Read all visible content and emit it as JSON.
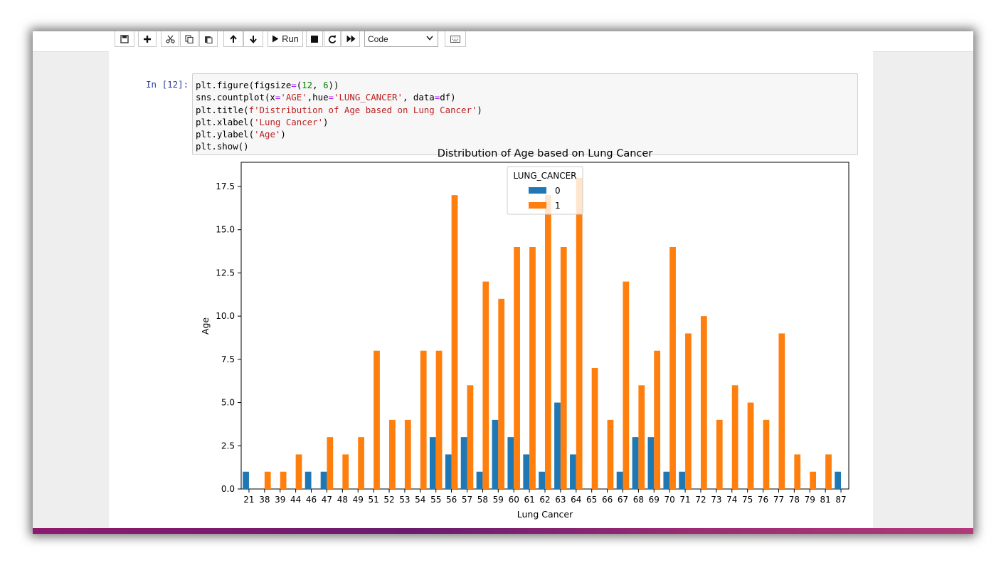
{
  "toolbar": {
    "buttons": [
      {
        "name": "save-button",
        "icon": "floppy-disk-icon"
      },
      {
        "name": "insert-cell-button",
        "icon": "plus-icon"
      },
      {
        "name": "cut-button",
        "icon": "scissors-icon"
      },
      {
        "name": "copy-button",
        "icon": "copy-icon"
      },
      {
        "name": "paste-button",
        "icon": "paste-icon"
      },
      {
        "name": "move-up-button",
        "icon": "arrow-up-icon"
      },
      {
        "name": "move-down-button",
        "icon": "arrow-down-icon"
      },
      {
        "name": "run-button",
        "icon": "play-icon"
      },
      {
        "name": "interrupt-button",
        "icon": "stop-icon"
      },
      {
        "name": "restart-button",
        "icon": "refresh-icon"
      },
      {
        "name": "restart-run-all-button",
        "icon": "fast-forward-icon"
      },
      {
        "name": "command-palette-button",
        "icon": "keyboard-icon"
      }
    ],
    "run_label": "Run",
    "cell_type": "Code"
  },
  "cell": {
    "prompt": "In [12]:",
    "code_lines": [
      "plt.figure(figsize=(12, 6))",
      "sns.countplot(x='AGE',hue='LUNG_CANCER', data=df)",
      "plt.title(f'Distribution of Age based on Lung Cancer')",
      "plt.xlabel('Lung Cancer')",
      "plt.ylabel('Age')",
      "plt.show()"
    ]
  },
  "colors": {
    "series_0": "#1f77b4",
    "series_1": "#ff7f0e"
  },
  "chart_data": {
    "type": "bar",
    "title": "Distribution of Age based on Lung Cancer",
    "xlabel": "Lung Cancer",
    "ylabel": "Age",
    "ylim": [
      0,
      18.9
    ],
    "yticks": [
      "0.0",
      "2.5",
      "5.0",
      "7.5",
      "10.0",
      "12.5",
      "15.0",
      "17.5"
    ],
    "legend_title": "LUNG_CANCER",
    "legend_position": "upper center",
    "categories": [
      "21",
      "38",
      "39",
      "44",
      "46",
      "47",
      "48",
      "49",
      "51",
      "52",
      "53",
      "54",
      "55",
      "56",
      "57",
      "58",
      "59",
      "60",
      "61",
      "62",
      "63",
      "64",
      "65",
      "66",
      "67",
      "68",
      "69",
      "70",
      "71",
      "72",
      "73",
      "74",
      "75",
      "76",
      "77",
      "78",
      "79",
      "81",
      "87"
    ],
    "series": [
      {
        "name": "0",
        "values": [
          1,
          0,
          0,
          0,
          1,
          1,
          0,
          0,
          0,
          0,
          0,
          0,
          3,
          2,
          3,
          1,
          4,
          3,
          2,
          1,
          5,
          2,
          0,
          0,
          1,
          3,
          3,
          1,
          1,
          0,
          0,
          0,
          0,
          0,
          0,
          0,
          0,
          0,
          1
        ]
      },
      {
        "name": "1",
        "values": [
          0,
          1,
          1,
          2,
          0,
          3,
          2,
          3,
          8,
          4,
          4,
          8,
          8,
          17,
          6,
          12,
          11,
          14,
          14,
          17,
          14,
          18,
          7,
          4,
          12,
          6,
          8,
          14,
          9,
          10,
          4,
          6,
          5,
          4,
          9,
          2,
          1,
          2,
          0
        ]
      }
    ]
  }
}
